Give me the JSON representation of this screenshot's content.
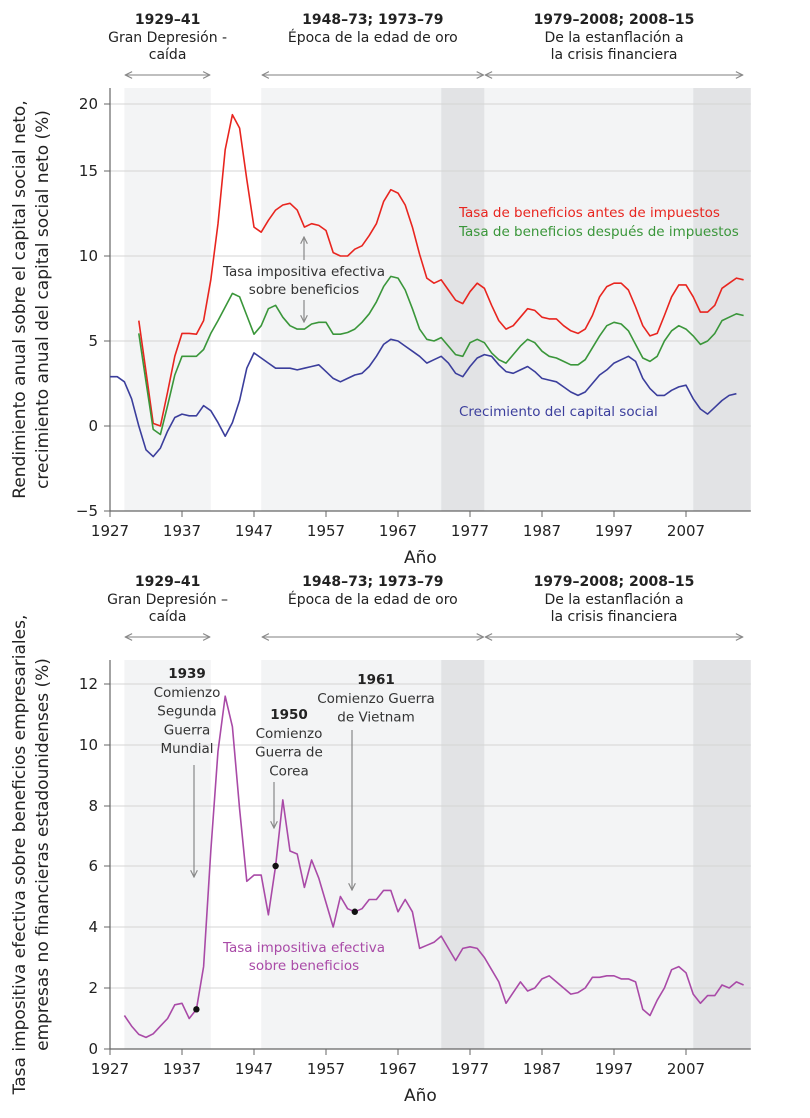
{
  "colors": {
    "red": "#e8251f",
    "green": "#3a963a",
    "blue": "#3b3e9c",
    "purple": "#a94aa7",
    "shade_light": "#f3f4f5",
    "shade_dark": "#e2e3e5",
    "grid": "#d4d4d4"
  },
  "periods": [
    {
      "title": "1929–41",
      "label_top": [
        "Gran Depresión -",
        "caída"
      ],
      "label_bottom": [
        "Gran Depresión –",
        "caída"
      ],
      "from": 1929,
      "to": 1941
    },
    {
      "title": "1948–73; 1973–79",
      "label_top": [
        "Época de la edad de oro"
      ],
      "label_bottom": [
        "Época de la edad de oro"
      ],
      "from": 1948,
      "to": 1979
    },
    {
      "title": "1979–2008; 2008–15",
      "label_top": [
        "De la estanflación a",
        "la crisis financiera"
      ],
      "label_bottom": [
        "De la estanflación a",
        "la crisis financiera"
      ],
      "from": 1979,
      "to": 2015
    }
  ],
  "chart_data": [
    {
      "type": "line",
      "ylabel": [
        "Rendimiento anual sobre el capital social neto,",
        "crecimiento anual del capital social neto (%)"
      ],
      "xlabel": "Año",
      "xlim": [
        1927,
        2016
      ],
      "ylim": [
        -5,
        20
      ],
      "xticks": [
        "1927",
        "1937",
        "1947",
        "1957",
        "1967",
        "1977",
        "1987",
        "1997",
        "2007"
      ],
      "yticks": [
        "−5",
        "0",
        "5",
        "10",
        "15",
        "20"
      ],
      "grid": true,
      "shaded_periods": [
        {
          "from": 1929,
          "to": 1941,
          "tone": "light"
        },
        {
          "from": 1948,
          "to": 1973,
          "tone": "light"
        },
        {
          "from": 1973,
          "to": 1979,
          "tone": "dark"
        },
        {
          "from": 1979,
          "to": 2008,
          "tone": "light"
        },
        {
          "from": 2008,
          "to": 2016,
          "tone": "dark"
        }
      ],
      "annotation": [
        "Tasa impositiva efectiva",
        "sobre beneficios"
      ],
      "series": [
        {
          "name": "Tasa de beneficios antes de impuestos",
          "color": "red",
          "x_range": [
            1931,
            2015
          ],
          "values": [
            6.2,
            3.2,
            0.15,
            0.0,
            2.0,
            4.1,
            5.45,
            5.45,
            5.4,
            6.2,
            8.6,
            11.9,
            16.6,
            19.2,
            18.2,
            14.5,
            11.7,
            11.4,
            12.1,
            12.7,
            13.0,
            13.1,
            12.7,
            11.7,
            11.9,
            11.8,
            11.5,
            10.2,
            10.0,
            10.0,
            10.4,
            10.6,
            11.2,
            11.9,
            13.2,
            13.9,
            13.7,
            13.0,
            11.7,
            10.1,
            8.7,
            8.4,
            8.6,
            8.0,
            7.4,
            7.2,
            7.9,
            8.4,
            8.1,
            7.1,
            6.2,
            5.7,
            5.9,
            6.4,
            6.9,
            6.8,
            6.4,
            6.3,
            6.3,
            5.9,
            5.6,
            5.45,
            5.7,
            6.5,
            7.6,
            8.2,
            8.4,
            8.4,
            8.0,
            7.0,
            5.9,
            5.3,
            5.45,
            6.5,
            7.6,
            8.3,
            8.3,
            7.6,
            6.7,
            6.7,
            7.1,
            8.1,
            8.4,
            8.7,
            8.6
          ]
        },
        {
          "name": "Tasa de beneficios después de impuestos",
          "color": "green",
          "x_range": [
            1931,
            2015
          ],
          "values": [
            5.45,
            2.6,
            -0.2,
            -0.5,
            1.2,
            3.0,
            4.1,
            4.1,
            4.1,
            4.5,
            5.45,
            6.2,
            7.0,
            7.8,
            7.6,
            6.5,
            5.4,
            5.9,
            6.9,
            7.1,
            6.4,
            5.9,
            5.7,
            5.7,
            6.0,
            6.1,
            6.1,
            5.4,
            5.4,
            5.5,
            5.7,
            6.1,
            6.6,
            7.3,
            8.2,
            8.8,
            8.7,
            8.0,
            6.9,
            5.7,
            5.1,
            5.0,
            5.2,
            4.7,
            4.2,
            4.1,
            4.9,
            5.1,
            4.9,
            4.3,
            3.9,
            3.7,
            4.2,
            4.7,
            5.1,
            4.9,
            4.4,
            4.1,
            4.0,
            3.8,
            3.6,
            3.6,
            3.9,
            4.6,
            5.3,
            5.9,
            6.1,
            6.0,
            5.6,
            4.8,
            4.0,
            3.8,
            4.1,
            5.0,
            5.6,
            5.9,
            5.7,
            5.3,
            4.8,
            5.0,
            5.45,
            6.2,
            6.4,
            6.6,
            6.5
          ]
        },
        {
          "name": "Crecimiento del capital social",
          "color": "blue",
          "x_range": [
            1927,
            2014
          ],
          "values": [
            2.9,
            2.9,
            2.6,
            1.6,
            0.0,
            -1.4,
            -1.8,
            -1.3,
            -0.3,
            0.5,
            0.7,
            0.6,
            0.6,
            1.2,
            0.9,
            0.2,
            -0.6,
            0.2,
            1.5,
            3.4,
            4.3,
            4.0,
            3.7,
            3.4,
            3.4,
            3.4,
            3.3,
            3.4,
            3.5,
            3.6,
            3.2,
            2.8,
            2.6,
            2.8,
            3.0,
            3.1,
            3.5,
            4.1,
            4.8,
            5.1,
            5.0,
            4.7,
            4.4,
            4.1,
            3.7,
            3.9,
            4.1,
            3.7,
            3.1,
            2.9,
            3.5,
            4.0,
            4.2,
            4.1,
            3.6,
            3.2,
            3.1,
            3.3,
            3.5,
            3.2,
            2.8,
            2.7,
            2.6,
            2.3,
            2.0,
            1.8,
            2.0,
            2.5,
            3.0,
            3.3,
            3.7,
            3.9,
            4.1,
            3.8,
            2.8,
            2.2,
            1.8,
            1.8,
            2.1,
            2.3,
            2.4,
            1.6,
            1.0,
            0.7,
            1.1,
            1.5,
            1.8,
            1.9
          ]
        }
      ]
    },
    {
      "type": "line",
      "ylabel": [
        "Tasa impositiva efectiva sobre beneficios empresariales,",
        "empresas no financieras estadounidenses (%)"
      ],
      "xlabel": "Año",
      "xlim": [
        1927,
        2016
      ],
      "ylim": [
        0,
        12
      ],
      "xticks": [
        "1927",
        "1937",
        "1947",
        "1957",
        "1967",
        "1977",
        "1987",
        "1997",
        "2007"
      ],
      "yticks": [
        "0",
        "2",
        "4",
        "6",
        "8",
        "10",
        "12"
      ],
      "grid": true,
      "shaded_periods": [
        {
          "from": 1929,
          "to": 1941,
          "tone": "light"
        },
        {
          "from": 1948,
          "to": 1973,
          "tone": "light"
        },
        {
          "from": 1973,
          "to": 1979,
          "tone": "dark"
        },
        {
          "from": 1979,
          "to": 2008,
          "tone": "light"
        },
        {
          "from": 2008,
          "to": 2016,
          "tone": "dark"
        }
      ],
      "series": [
        {
          "name": "Tasa impositiva efectiva sobre beneficios",
          "label_lines": [
            "Tasa impositiva efectiva",
            "sobre beneficios"
          ],
          "color": "purple",
          "x_range": [
            1929,
            2015
          ],
          "values": [
            1.1,
            0.75,
            0.48,
            0.38,
            0.5,
            0.75,
            1.0,
            1.45,
            1.5,
            1.0,
            1.3,
            2.7,
            6.5,
            9.8,
            11.6,
            10.6,
            7.9,
            5.5,
            5.7,
            5.7,
            4.4,
            6.0,
            8.2,
            6.5,
            6.4,
            5.3,
            6.2,
            5.6,
            4.8,
            4.0,
            5.0,
            4.6,
            4.5,
            4.6,
            4.9,
            4.9,
            5.2,
            5.2,
            4.5,
            4.9,
            4.5,
            3.3,
            3.4,
            3.5,
            3.7,
            3.3,
            2.9,
            3.3,
            3.35,
            3.3,
            3.0,
            2.6,
            2.2,
            1.5,
            1.85,
            2.2,
            1.9,
            2.0,
            2.3,
            2.4,
            2.2,
            2.0,
            1.8,
            1.85,
            2.0,
            2.35,
            2.35,
            2.4,
            2.4,
            2.3,
            2.3,
            2.2,
            1.3,
            1.1,
            1.6,
            2.0,
            2.6,
            2.7,
            2.5,
            1.8,
            1.5,
            1.75,
            1.75,
            2.1,
            2.0,
            2.2,
            2.1
          ]
        }
      ],
      "events": [
        {
          "year": 1939,
          "value": 1.3,
          "title": "1939",
          "lines": [
            "Comienzo",
            "Segunda",
            "Guerra",
            "Mundial"
          ]
        },
        {
          "year": 1950,
          "value": 6.0,
          "title": "1950",
          "lines": [
            "Comienzo",
            "Guerra de",
            "Corea"
          ]
        },
        {
          "year": 1961,
          "value": 4.5,
          "title": "1961",
          "lines": [
            "Comienzo Guerra",
            "de Vietnam"
          ]
        }
      ]
    }
  ]
}
